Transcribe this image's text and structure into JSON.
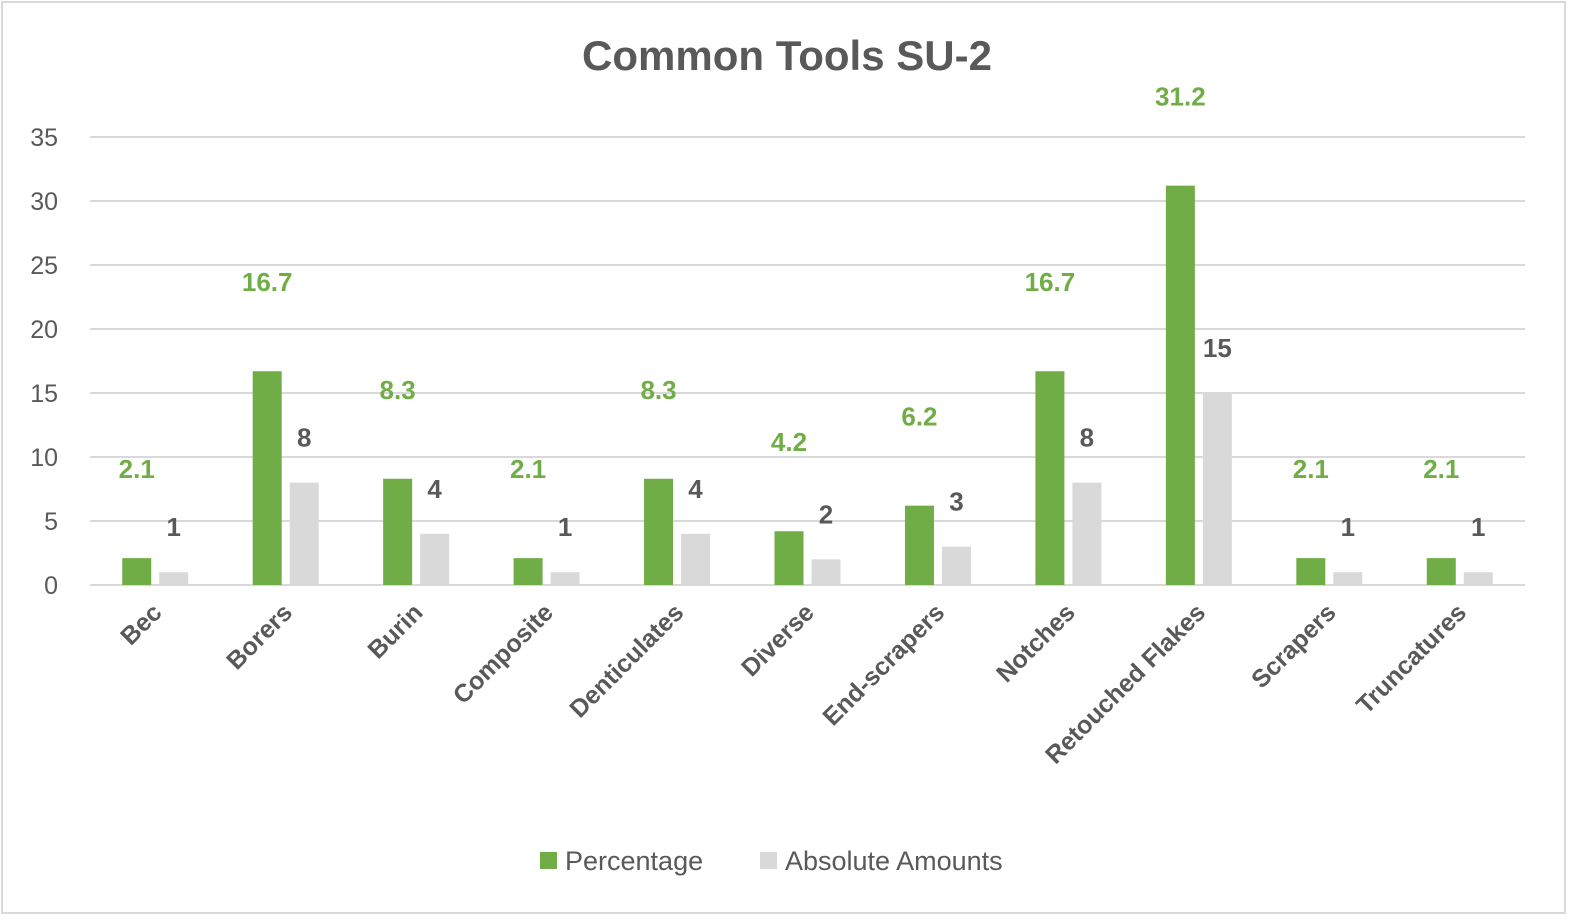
{
  "chart_data": {
    "type": "bar",
    "title": "Common Tools SU-2",
    "categories": [
      "Bec",
      "Borers",
      "Burin",
      "Composite",
      "Denticulates",
      "Diverse",
      "End-scrapers",
      "Notches",
      "Retouched Flakes",
      "Scrapers",
      "Truncatures"
    ],
    "series": [
      {
        "name": "Percentage",
        "color": "#70ad47",
        "values": [
          2.1,
          16.7,
          8.3,
          2.1,
          8.3,
          4.2,
          6.2,
          16.7,
          31.2,
          2.1,
          2.1
        ]
      },
      {
        "name": "Absolute  Amounts",
        "color": "#d9d9d9",
        "values": [
          1,
          8,
          4,
          1,
          4,
          2,
          3,
          8,
          15,
          1,
          1
        ]
      }
    ],
    "ylim": [
      0,
      35
    ],
    "yticks": [
      0,
      5,
      10,
      15,
      20,
      25,
      30,
      35
    ],
    "grid": true,
    "legend": "bottom",
    "data_labels": true
  }
}
